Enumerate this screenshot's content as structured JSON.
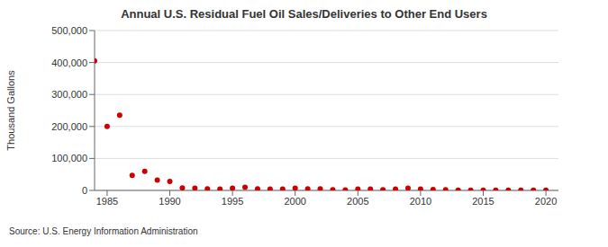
{
  "chart_data": {
    "type": "scatter",
    "title": "Annual U.S. Residual Fuel Oil Sales/Deliveries to Other End Users",
    "y_label": "Thousand Gallons",
    "source": "Source: U.S. Energy Information Administration",
    "x": [
      1984,
      1985,
      1986,
      1987,
      1988,
      1989,
      1990,
      1991,
      1992,
      1993,
      1994,
      1995,
      1996,
      1997,
      1998,
      1999,
      2000,
      2001,
      2002,
      2003,
      2004,
      2005,
      2006,
      2007,
      2008,
      2009,
      2010,
      2011,
      2012,
      2013,
      2014,
      2015,
      2016,
      2017,
      2018,
      2019,
      2020
    ],
    "values": [
      405000,
      200000,
      235000,
      47000,
      60000,
      32000,
      28000,
      8000,
      7000,
      5000,
      4000,
      7000,
      10000,
      5000,
      4000,
      4000,
      7000,
      5000,
      5000,
      2000,
      1500,
      4000,
      4000,
      2000,
      4000,
      7000,
      4000,
      3000,
      2000,
      1000,
      1000,
      1000,
      1000,
      500,
      500,
      500,
      500
    ],
    "color": "#cc0000",
    "marker": "circle",
    "xlim": [
      1984,
      2021
    ],
    "xticks": [
      1985,
      1990,
      1995,
      2000,
      2005,
      2010,
      2015,
      2020
    ],
    "ylim": [
      0,
      500000
    ],
    "yticks": [
      {
        "value": 0,
        "label": "0"
      },
      {
        "value": 100000,
        "label": "100,000"
      },
      {
        "value": 200000,
        "label": "200,000"
      },
      {
        "value": 300000,
        "label": "300,000"
      },
      {
        "value": 400000,
        "label": "400,000"
      },
      {
        "value": 500000,
        "label": "500,000"
      }
    ],
    "grid": true
  }
}
